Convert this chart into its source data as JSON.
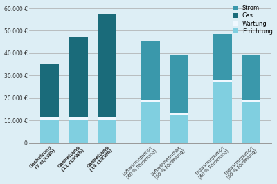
{
  "groups": [
    {
      "label": "Gasheizung\n(7 ct/kWh)",
      "bold": true,
      "errichtung": 10000,
      "wartung": 1500,
      "gas": 23500,
      "strom": 0
    },
    {
      "label": "Gasheizung\n(11 ct/kWh)",
      "bold": true,
      "errichtung": 10000,
      "wartung": 1500,
      "gas": 36000,
      "strom": 0
    },
    {
      "label": "Gasheizung\n(14 ct/kWh)",
      "bold": true,
      "errichtung": 10000,
      "wartung": 1500,
      "gas": 46000,
      "strom": 0
    },
    {
      "label": "Luftwärmepumpe\n(40 % Förderung)",
      "bold": false,
      "errichtung": 18000,
      "wartung": 1000,
      "gas": 0,
      "strom": 26500
    },
    {
      "label": "Luftwärmepumpe\n(60 % Förderung)",
      "bold": false,
      "errichtung": 12500,
      "wartung": 1000,
      "gas": 0,
      "strom": 26000
    },
    {
      "label": "Erdwärmepumpe\n(40 % Förderung)",
      "bold": false,
      "errichtung": 27000,
      "wartung": 1000,
      "gas": 0,
      "strom": 20500
    },
    {
      "label": "Erdwärmepumpe\n(60 % Förderung)",
      "bold": false,
      "errichtung": 18000,
      "wartung": 1000,
      "gas": 0,
      "strom": 20500
    }
  ],
  "group_positions": [
    0,
    1,
    2,
    3.5,
    4.5,
    6,
    7
  ],
  "color_errichtung": "#80cfe0",
  "color_wartung": "#f0f8ff",
  "color_gas": "#1a6b7a",
  "color_strom": "#3a98ab",
  "background_color": "#ddeef5",
  "ylim": [
    0,
    62000
  ],
  "yticks": [
    0,
    10000,
    20000,
    30000,
    40000,
    50000,
    60000
  ],
  "ytick_labels": [
    "0",
    "10.000 €",
    "20.000 €",
    "30.000 €",
    "40.000 €",
    "50.000 €",
    "60.000 €"
  ],
  "legend_labels": [
    "Strom",
    "Gas",
    "Wartung",
    "Errichtung"
  ],
  "bar_width": 0.65,
  "figsize": [
    4.0,
    2.66
  ],
  "dpi": 100
}
